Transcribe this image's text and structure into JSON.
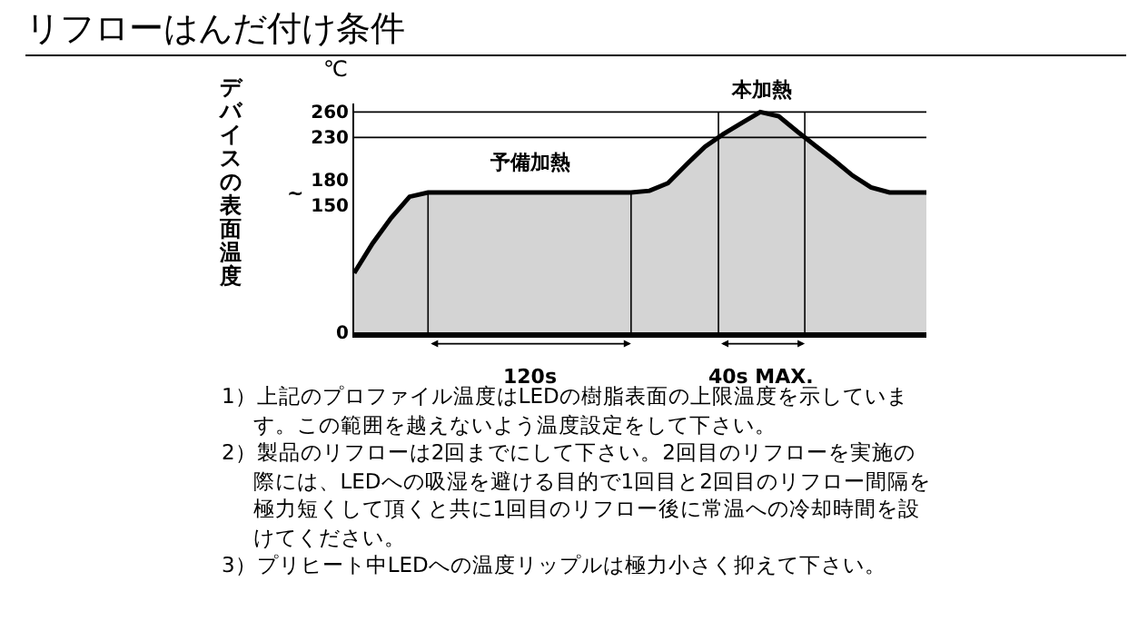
{
  "chart_data": {
    "type": "area",
    "title": "リフローはんだ付け条件",
    "ylabel": "デバイスの表面温度",
    "categories": [
      null,
      null,
      null,
      null,
      null,
      null,
      null,
      null,
      null,
      null,
      null,
      null,
      null,
      null,
      null,
      null,
      null,
      null,
      null,
      null,
      null,
      null,
      null,
      null,
      null,
      null,
      null,
      null,
      null,
      null,
      null,
      null
    ],
    "series": [
      {
        "color": "#000000",
        "values": [
          70,
          105,
          135,
          160,
          165,
          165,
          165,
          165,
          165,
          165,
          165,
          165,
          165,
          165,
          165,
          165,
          167,
          176,
          198,
          219,
          234,
          247,
          260,
          255,
          237,
          220,
          203,
          185,
          171,
          165,
          165,
          165
        ]
      }
    ],
    "ylim": [
      0,
      270
    ],
    "yticks": [
      0,
      150,
      180,
      230,
      260
    ],
    "ref_lines": [
      {
        "axis": "y",
        "value": 260,
        "color": "#000000"
      },
      {
        "axis": "y",
        "value": 230,
        "color": "#000000"
      }
    ],
    "grid": false,
    "tick_labels": "y",
    "annotations": [
      "℃",
      "予備加熱",
      "本加熱",
      "120s",
      "40s MAX.",
      "~",
      "1）上記のプロファイル温度はLEDの樹脂表面の上限温度を示しています。この範囲を越えないよう温度設定をして下さい。",
      "2）製品のリフローは2回までにして下さい。2回目のリフローを実施の際には、LEDへの吸湿を避ける目的で1回目と2回目のリフロー間隔を極力短くして頂くと共に1回目のリフロー後に常温への冷却時間を設けてください。",
      "3）プリヒート中LEDへの温度リップルは極力小さく抑えて下さい。"
    ]
  }
}
